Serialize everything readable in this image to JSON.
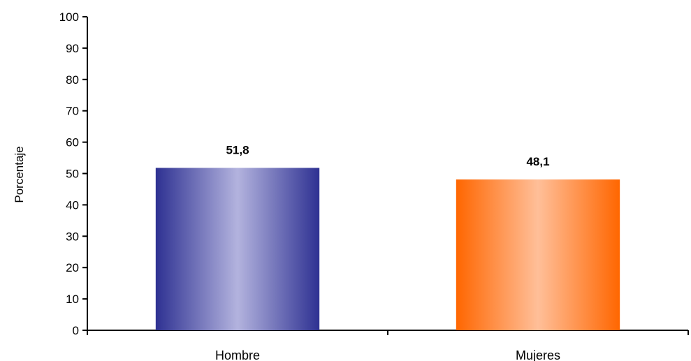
{
  "chart_data": {
    "type": "bar",
    "categories": [
      "Hombre",
      "Mujeres"
    ],
    "values": [
      51.8,
      48.1
    ],
    "value_labels": [
      "51,8",
      "48,1"
    ],
    "ylabel": "Porcentaje",
    "ylim": [
      0,
      100
    ],
    "yticks": [
      0,
      10,
      20,
      30,
      40,
      50,
      60,
      70,
      80,
      90,
      100
    ],
    "grid": false,
    "legend": "none",
    "colors": {
      "Hombre": {
        "edge": "#2e3192",
        "mid": "#b3b3de"
      },
      "Mujeres": {
        "edge": "#ff6600",
        "mid": "#ffbf99"
      }
    }
  }
}
